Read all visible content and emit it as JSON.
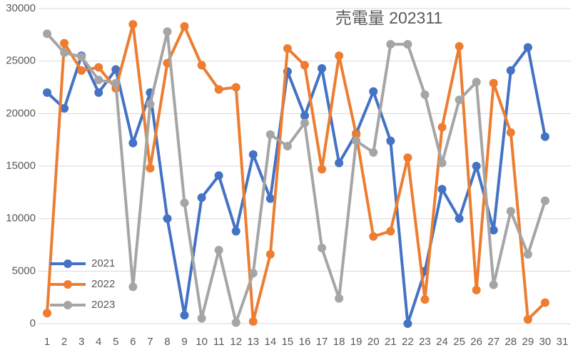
{
  "chart_data": {
    "type": "line",
    "title": "売電量 202311",
    "categories": [
      1,
      2,
      3,
      4,
      5,
      6,
      7,
      8,
      9,
      10,
      11,
      12,
      13,
      14,
      15,
      16,
      17,
      18,
      19,
      20,
      21,
      22,
      23,
      24,
      25,
      26,
      27,
      28,
      29,
      30,
      31
    ],
    "series": [
      {
        "name": "2021",
        "color": "#4472c4",
        "values": [
          22000,
          20500,
          25500,
          22000,
          24200,
          17200,
          22000,
          10000,
          800,
          12000,
          14100,
          8800,
          16100,
          11900,
          24000,
          19800,
          24300,
          15300,
          18100,
          22100,
          17400,
          0,
          5000,
          12800,
          10000,
          15000,
          8900,
          24100,
          26300,
          17800,
          null
        ]
      },
      {
        "name": "2022",
        "color": "#ed7d31",
        "values": [
          1000,
          26700,
          24100,
          24400,
          22400,
          28500,
          14800,
          24800,
          28300,
          24600,
          22300,
          22500,
          200,
          6600,
          26200,
          24600,
          14700,
          25500,
          18000,
          8300,
          8800,
          15800,
          2300,
          18700,
          26400,
          3200,
          22900,
          18200,
          400,
          2000,
          null
        ]
      },
      {
        "name": "2023",
        "color": "#a5a5a5",
        "values": [
          27600,
          25800,
          25400,
          23200,
          22900,
          3500,
          20900,
          27800,
          11500,
          500,
          7000,
          100,
          4800,
          18000,
          16900,
          19100,
          7200,
          2400,
          17400,
          16300,
          26600,
          26600,
          21800,
          15300,
          21300,
          23000,
          3700,
          10700,
          6600,
          11700,
          null
        ]
      }
    ],
    "ylim": [
      0,
      30000
    ],
    "yticks": [
      0,
      5000,
      10000,
      15000,
      20000,
      25000,
      30000
    ],
    "grid": true,
    "legend": "bottom-left"
  }
}
